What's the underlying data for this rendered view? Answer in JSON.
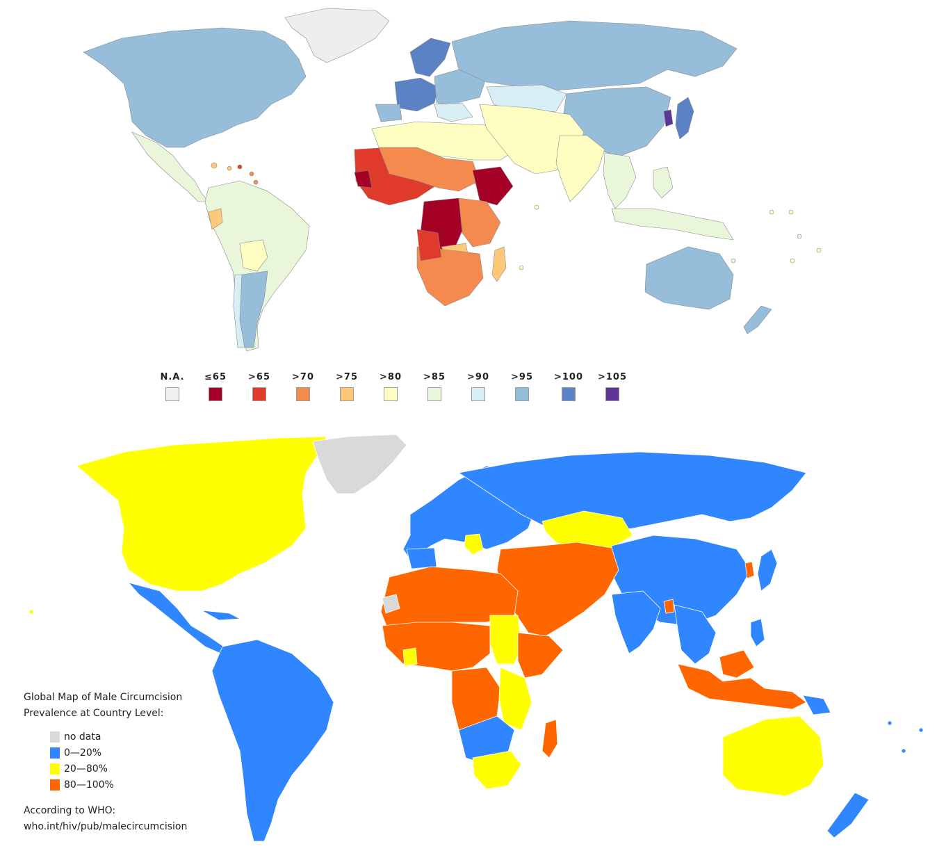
{
  "top_map": {
    "legend": [
      {
        "label": "N.A.",
        "color": "#f0f0f0"
      },
      {
        "label": "≤65",
        "color": "#a50026"
      },
      {
        "label": ">65",
        "color": "#e03a2a"
      },
      {
        "label": ">70",
        "color": "#f58a4f"
      },
      {
        "label": ">75",
        "color": "#fdc877"
      },
      {
        "label": ">80",
        "color": "#fefec3"
      },
      {
        "label": ">85",
        "color": "#eaf6d9"
      },
      {
        "label": ">90",
        "color": "#d7eef4"
      },
      {
        "label": ">95",
        "color": "#96bdda"
      },
      {
        "label": ">100",
        "color": "#5b82c4"
      },
      {
        "label": ">105",
        "color": "#5e3596"
      }
    ]
  },
  "bottom_map": {
    "title_line1": "Global Map of Male Circumcision",
    "title_line2": "Prevalence at Country Level:",
    "legend": [
      {
        "label": "no data",
        "color": "#d9d9d9"
      },
      {
        "label": " 0—20%",
        "color": "#2f86ff"
      },
      {
        "label": "20—80%",
        "color": "#ffff00"
      },
      {
        "label": "80—100%",
        "color": "#ff6600"
      }
    ],
    "source_line1": "According to WHO:",
    "source_line2": "who.int/hiv/pub/malecircumcision"
  }
}
